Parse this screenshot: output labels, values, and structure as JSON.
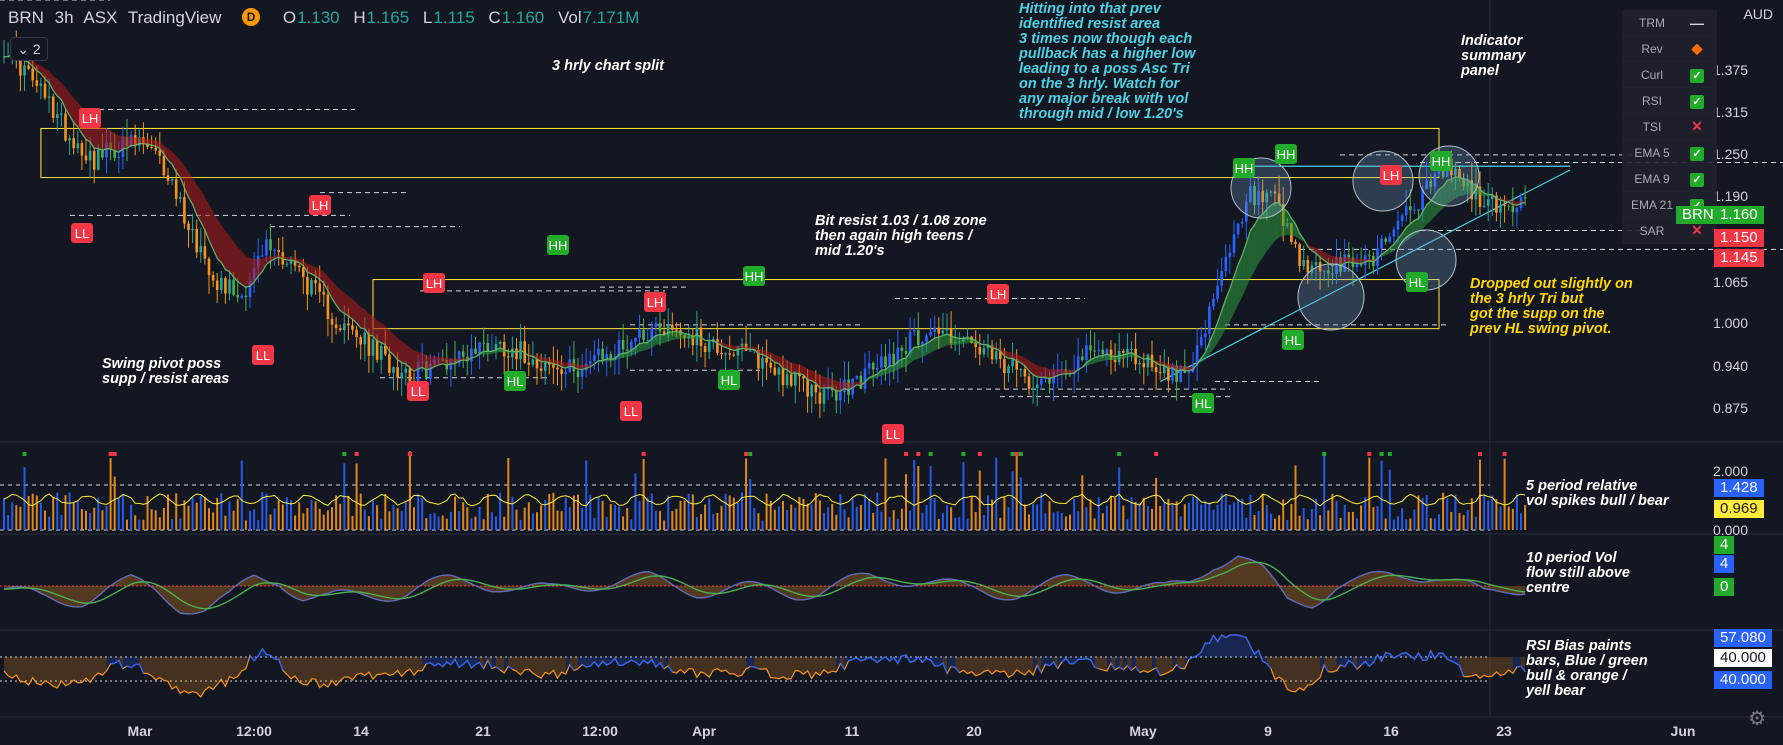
{
  "header": {
    "symbol": "BRN",
    "interval": "3h",
    "exchange": "ASX",
    "source": "TradingView",
    "o_label": "O",
    "o_value": "1.130",
    "h_label": "H",
    "h_value": "1.165",
    "l_label": "L",
    "l_value": "1.115",
    "c_label": "C",
    "c_value": "1.160",
    "vol_label": "Vol",
    "vol_value": "7.171M",
    "d_icon": "D",
    "collapse": "2"
  },
  "currency": "AUD",
  "annotations": {
    "split": "3 hrly chart split",
    "swing": "Swing pivot poss\nsupp / resist areas",
    "bit": "Bit resist 1.03 / 1.08 zone\nthen again high teens /\nmid 1.20's",
    "hitting": "Hitting into that prev\nidentified resist area\n3 times now though each\npullback has a higher low\nleading to a poss Asc Tri\non the 3 hrly. Watch for\nany major break with vol\nthrough mid / low 1.20's",
    "indicator": "Indicator\nsummary\npanel",
    "dropped": "Dropped out slightly on\nthe 3 hrly Tri but\ngot the supp on the\nprev HL swing pivot.",
    "relvol": "5 period relative\nvol spikes bull / bear",
    "volflow": "10 period Vol\nflow still above\ncentre",
    "rsibias": "RSI Bias paints\nbars, Blue / green\nbull & orange /\nyell bear"
  },
  "panel": [
    {
      "label": "TRM",
      "status": "dash",
      "glyph": "—"
    },
    {
      "label": "Rev",
      "status": "diamond",
      "glyph": "◆"
    },
    {
      "label": "Curl",
      "status": "ok",
      "glyph": "✓"
    },
    {
      "label": "RSI",
      "status": "ok",
      "glyph": "✓"
    },
    {
      "label": "TSI",
      "status": "x",
      "glyph": "✕"
    },
    {
      "label": "EMA 5",
      "status": "ok",
      "glyph": "✓"
    },
    {
      "label": "EMA 9",
      "status": "ok",
      "glyph": "✓"
    },
    {
      "label": "EMA 21",
      "status": "ok",
      "glyph": "✓"
    },
    {
      "label": "SAR",
      "status": "x",
      "glyph": "✕"
    }
  ],
  "price_tags": {
    "symbol_tag": "BRN",
    "symbol_value": "1.160",
    "red1": "1.150",
    "red2": "1.145"
  },
  "pane_tags": {
    "relvol": [
      "1.428",
      "0.969"
    ],
    "volflow": [
      "4",
      "4",
      "0"
    ],
    "rsi": [
      "57.080",
      "40.000",
      "40.000"
    ]
  },
  "icons": {
    "settings": "gear-icon"
  },
  "colors": {
    "bull": "#26a69a",
    "bear": "#ef5350",
    "hh": "#22ab2b",
    "ll": "#f23645",
    "orange": "#f7931a",
    "blue": "#2962ff",
    "yellow": "#ffeb3b",
    "cyan": "#4dd0e1"
  },
  "chart_data": [
    {
      "type": "candlestick",
      "title": "",
      "y_ticks": [
        "1.375",
        "1.315",
        "1.250",
        "1.190",
        "1.065",
        "1.000",
        "0.940",
        "0.875"
      ],
      "x_ticks": [
        "Mar",
        "12:00",
        "14",
        "21",
        "12:00",
        "Apr",
        "11",
        "20",
        "May",
        "9",
        "16",
        "23",
        "Jun"
      ],
      "ylim": [
        0.845,
        1.43
      ],
      "close_path": [
        [
          0,
          1.37
        ],
        [
          6,
          1.33
        ],
        [
          12,
          1.285
        ],
        [
          16,
          1.25
        ],
        [
          22,
          1.22
        ],
        [
          28,
          1.235
        ],
        [
          34,
          1.24
        ],
        [
          40,
          1.2
        ],
        [
          46,
          1.12
        ],
        [
          52,
          1.06
        ],
        [
          58,
          1.04
        ],
        [
          64,
          1.105
        ],
        [
          70,
          1.085
        ],
        [
          76,
          1.04
        ],
        [
          82,
          1.0
        ],
        [
          88,
          0.975
        ],
        [
          94,
          0.95
        ],
        [
          100,
          0.935
        ],
        [
          106,
          0.95
        ],
        [
          112,
          0.96
        ],
        [
          118,
          0.975
        ],
        [
          124,
          0.97
        ],
        [
          130,
          0.955
        ],
        [
          136,
          0.935
        ],
        [
          142,
          0.95
        ],
        [
          148,
          0.96
        ],
        [
          154,
          0.985
        ],
        [
          160,
          1.0
        ],
        [
          166,
          0.99
        ],
        [
          172,
          0.975
        ],
        [
          178,
          0.965
        ],
        [
          184,
          0.955
        ],
        [
          190,
          0.935
        ],
        [
          196,
          0.915
        ],
        [
          202,
          0.905
        ],
        [
          208,
          0.925
        ],
        [
          214,
          0.95
        ],
        [
          220,
          0.975
        ],
        [
          226,
          0.995
        ],
        [
          232,
          0.985
        ],
        [
          238,
          0.965
        ],
        [
          244,
          0.945
        ],
        [
          250,
          0.93
        ],
        [
          256,
          0.935
        ],
        [
          262,
          0.955
        ],
        [
          268,
          0.965
        ],
        [
          274,
          0.96
        ],
        [
          280,
          0.95
        ],
        [
          286,
          0.93
        ],
        [
          292,
          0.975
        ],
        [
          298,
          1.08
        ],
        [
          304,
          1.17
        ],
        [
          310,
          1.16
        ],
        [
          316,
          1.08
        ],
        [
          322,
          1.07
        ],
        [
          328,
          1.08
        ],
        [
          334,
          1.09
        ],
        [
          340,
          1.14
        ],
        [
          346,
          1.17
        ],
        [
          352,
          1.21
        ],
        [
          358,
          1.175
        ],
        [
          364,
          1.155
        ],
        [
          370,
          1.16
        ]
      ],
      "close_path_x_units": "3h bar index",
      "levels": [
        {
          "y": 1.26,
          "color": "#ffeb3b",
          "x0": 9,
          "x1": 350
        },
        {
          "y": 1.195,
          "color": "#ffeb3b",
          "x0": 9,
          "x1": 350
        },
        {
          "y": 1.06,
          "color": "#ffeb3b",
          "x0": 90,
          "x1": 350
        },
        {
          "y": 0.995,
          "color": "#ffeb3b",
          "x0": 90,
          "x1": 350
        },
        {
          "y": 1.21,
          "color": "#4dd0e1",
          "x0": 300,
          "x1": 395
        }
      ],
      "pivots": [
        {
          "label": "LH",
          "x": 12,
          "y": 1.28
        },
        {
          "label": "LL",
          "x": 12,
          "y": 1.135
        },
        {
          "label": "LH",
          "x": 64,
          "y": 1.18
        },
        {
          "label": "LL",
          "x": 52,
          "y": 0.945
        },
        {
          "label": "LH",
          "x": 100,
          "y": 1.08
        },
        {
          "label": "LL",
          "x": 96,
          "y": 0.915
        },
        {
          "label": "HL",
          "x": 117,
          "y": 0.935
        },
        {
          "label": "HH",
          "x": 126,
          "y": 1.13
        },
        {
          "label": "LL",
          "x": 146,
          "y": 0.895
        },
        {
          "label": "LH",
          "x": 150,
          "y": 1.065
        },
        {
          "label": "HL",
          "x": 166,
          "y": 0.935
        },
        {
          "label": "HH",
          "x": 172,
          "y": 1.095
        },
        {
          "label": "LL",
          "x": 205,
          "y": 0.855
        },
        {
          "label": "LH",
          "x": 229,
          "y": 1.045
        },
        {
          "label": "HL",
          "x": 281,
          "y": 0.905
        },
        {
          "label": "HH",
          "x": 306,
          "y": 1.245
        },
        {
          "label": "HH",
          "x": 318,
          "y": 1.26
        },
        {
          "label": "HL",
          "x": 328,
          "y": 0.985
        },
        {
          "label": "LH",
          "x": 345,
          "y": 1.235
        },
        {
          "label": "HL",
          "x": 353,
          "y": 1.06
        },
        {
          "label": "HH",
          "x": 361,
          "y": 1.25
        }
      ]
    },
    {
      "type": "bar",
      "title": "",
      "series": [
        {
          "values": "synthetic relative volume spikes"
        }
      ],
      "ylim": [
        0,
        2.6
      ],
      "y_ticks": [
        "2.000",
        "0.000"
      ]
    },
    {
      "type": "line",
      "title": "",
      "y_ticks": []
    },
    {
      "type": "area",
      "title": "",
      "y_ticks": []
    }
  ]
}
